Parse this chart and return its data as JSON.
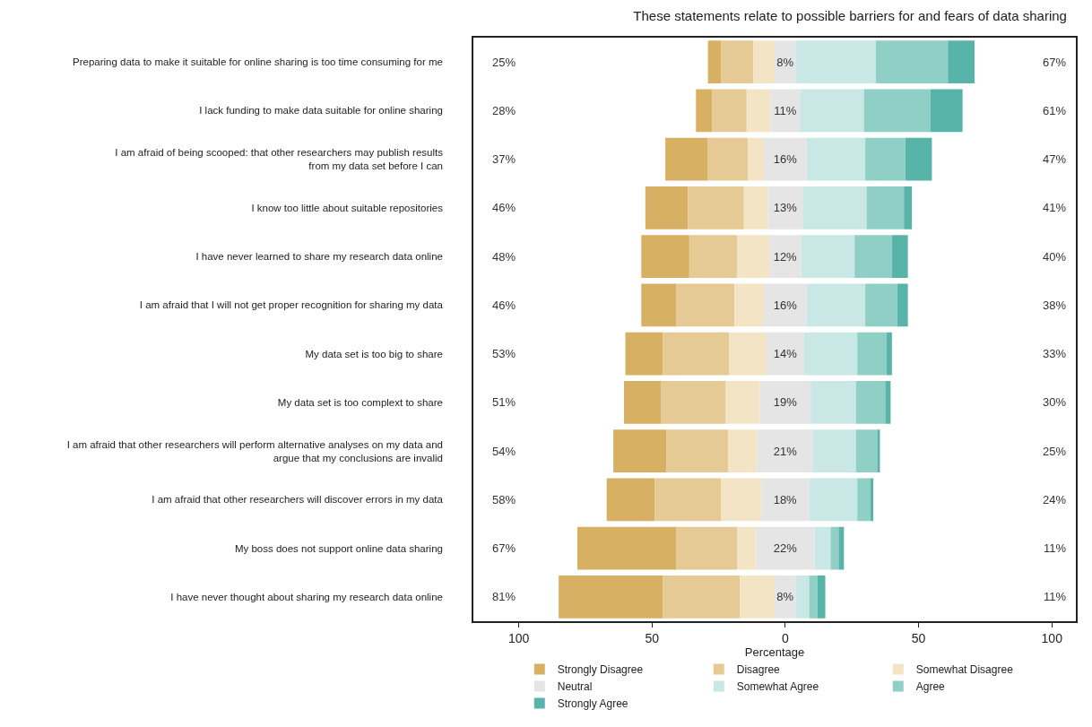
{
  "chart_data": {
    "type": "bar",
    "orientation": "horizontal",
    "title": "These statements relate to possible barriers for and fears of data sharing",
    "xlabel": "Percentage",
    "categories": [
      "Preparing data to make it suitable for online sharing is too time consuming for me",
      "I lack funding to make data suitable for online sharing",
      "I am afraid of being scooped: that other researchers may publish results from my data set before I can",
      "I know too little about suitable repositories",
      "I have never learned to share my research data online",
      "I am afraid that I will not get proper recognition for sharing my data",
      "My data set is too big to share",
      "My data set is too complext to share",
      "I am afraid that other researchers will perform alternative analyses on my data and argue that my conclusions are invalid",
      "I am afraid that other researchers will discover errors in my data",
      "My boss does not support online data sharing",
      "I have never thought about sharing my research data online"
    ],
    "series": [
      {
        "name": "Strongly Disagree",
        "color": "#d8b064",
        "values": [
          5,
          6,
          16,
          16,
          18,
          13,
          14,
          14,
          20,
          18,
          37,
          39
        ],
        "base": [
          -29,
          -33.5,
          -45,
          -52.5,
          -54,
          -54,
          -60,
          -60.5,
          -64.5,
          -67,
          -78,
          -85
        ]
      },
      {
        "name": "Disagree",
        "color": "#e5ca95",
        "values": [
          12,
          13,
          15,
          21,
          18,
          22,
          25,
          24,
          23,
          25,
          23,
          29
        ],
        "base": [
          -24,
          -27.5,
          -29,
          -36.5,
          -36,
          -41,
          -46,
          -46.5,
          -44.5,
          -49,
          -41,
          -46
        ]
      },
      {
        "name": "Somewhat Disagree",
        "color": "#f3e4c6",
        "values": [
          8,
          9,
          6,
          9,
          12,
          11,
          14,
          13,
          11,
          15,
          7,
          13
        ],
        "base": [
          -12,
          -14.5,
          -14,
          -15.5,
          -18,
          -19,
          -21,
          -22.5,
          -21.5,
          -24,
          -18,
          -17
        ]
      },
      {
        "name": "Neutral",
        "color": "#e5e5e5",
        "values": [
          8,
          11,
          16,
          13,
          12,
          16,
          14,
          19,
          21,
          18,
          22,
          8
        ],
        "base": [
          -4,
          -5.5,
          -8,
          -6.5,
          -6,
          -8,
          -7,
          -9.5,
          -10.5,
          -9,
          -11,
          -4
        ],
        "value_labels": [
          "8%",
          "11%",
          "16%",
          "13%",
          "12%",
          "16%",
          "14%",
          "19%",
          "21%",
          "18%",
          "22%",
          "8%"
        ]
      },
      {
        "name": "Somewhat Agree",
        "color": "#c8e7e5",
        "values": [
          30,
          24,
          22,
          24,
          20,
          22,
          20,
          17,
          16,
          18,
          6,
          5
        ],
        "base": [
          4,
          5.5,
          8,
          6.5,
          6,
          8,
          7,
          9.5,
          10.5,
          9,
          11,
          4
        ]
      },
      {
        "name": "Agree",
        "color": "#90cfc6",
        "values": [
          27,
          25,
          15,
          14,
          14,
          12,
          11,
          11,
          8,
          5,
          3,
          3
        ],
        "base": [
          34,
          29.5,
          30,
          30.5,
          26,
          30,
          27,
          26.5,
          26.5,
          27,
          17,
          9
        ]
      },
      {
        "name": "Strongly Agree",
        "color": "#58b3a9",
        "values": [
          10,
          12,
          10,
          3,
          6,
          4,
          2,
          2,
          1,
          1,
          2,
          3
        ],
        "base": [
          61,
          54.5,
          45,
          44.5,
          40,
          42,
          38,
          37.5,
          34.5,
          32,
          20,
          12
        ]
      }
    ],
    "annotations": [
      "25%",
      "28%",
      "37%",
      "46%",
      "48%",
      "46%",
      "53%",
      "51%",
      "54%",
      "58%",
      "67%",
      "81%",
      "67%",
      "61%",
      "47%",
      "41%",
      "40%",
      "38%",
      "33%",
      "30%",
      "25%",
      "24%",
      "11%",
      "11%"
    ],
    "xlim": [
      -117,
      109
    ],
    "xticks": [
      {
        "value": -100,
        "label": "100"
      },
      {
        "value": -50,
        "label": "50"
      },
      0,
      50,
      100
    ],
    "grid": false,
    "legend": "bottom"
  }
}
